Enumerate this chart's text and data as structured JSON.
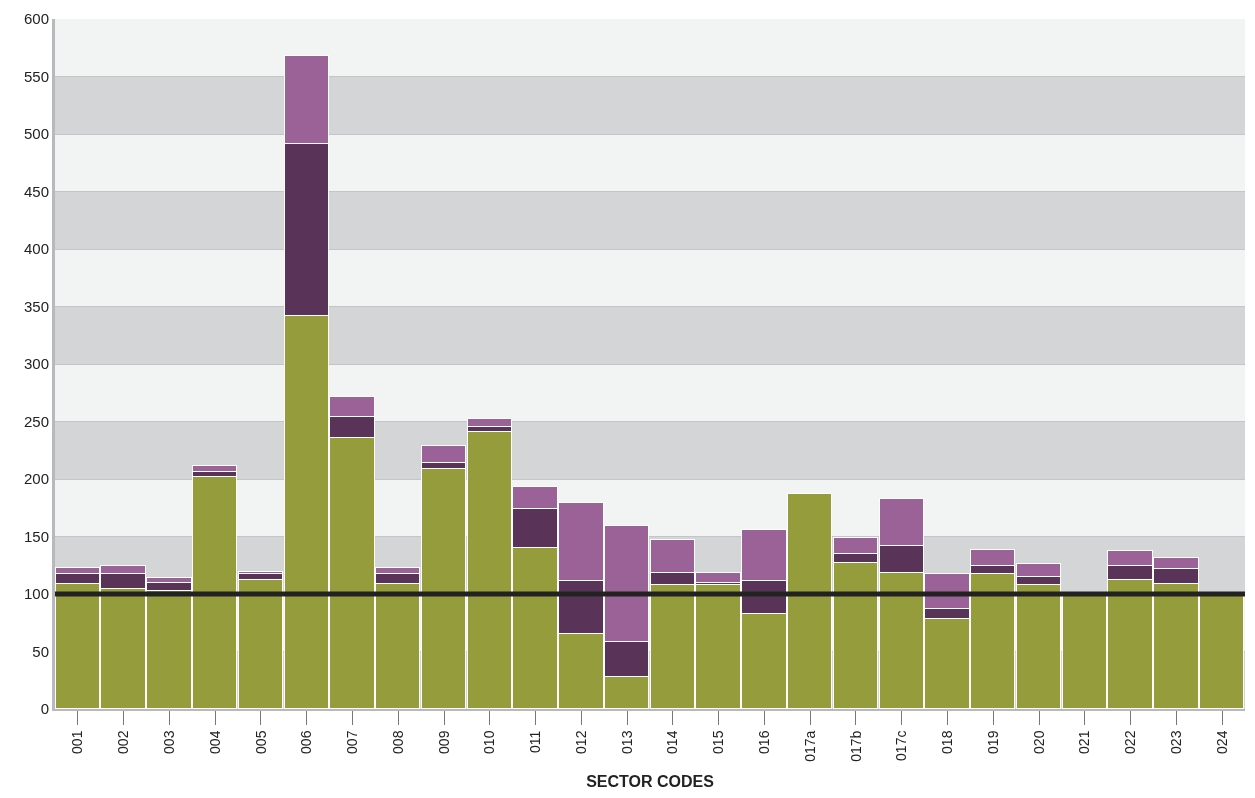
{
  "chart_data": {
    "type": "bar",
    "stacked": true,
    "xlabel": "SECTOR CODES",
    "categories": [
      "001",
      "002",
      "003",
      "004",
      "005",
      "006",
      "007",
      "008",
      "009",
      "010",
      "011",
      "012",
      "013",
      "014",
      "015",
      "016",
      "017a",
      "017b",
      "017c",
      "018",
      "019",
      "020",
      "021",
      "022",
      "023",
      "024"
    ],
    "series": [
      {
        "color": "#959c3c",
        "values": [
          109,
          104,
          103,
          202,
          112,
          342,
          236,
          109,
          209,
          241,
          140,
          65,
          28,
          108,
          108,
          83,
          187,
          127,
          118,
          78,
          117,
          108,
          100,
          112,
          109,
          100
        ]
      },
      {
        "color": "#5a3358",
        "values": [
          8,
          13,
          7,
          4,
          5,
          149,
          18,
          8,
          5,
          4,
          34,
          46,
          30,
          10,
          2,
          28,
          null,
          8,
          24,
          9,
          7,
          7,
          null,
          12,
          13,
          null
        ]
      },
      {
        "color": "#9a6296",
        "values": [
          6,
          7,
          4,
          5,
          2,
          77,
          17,
          6,
          15,
          7,
          19,
          68,
          101,
          29,
          8,
          45,
          null,
          14,
          41,
          30,
          14,
          11,
          null,
          13,
          9,
          null
        ]
      }
    ],
    "ylim": [
      0,
      600
    ],
    "yticks": [
      0,
      50,
      100,
      150,
      200,
      250,
      300,
      350,
      400,
      450,
      500,
      550,
      600
    ],
    "grid": "y",
    "ref_lines": [
      {
        "axis": "y",
        "value": 100,
        "color": "#222222"
      }
    ]
  }
}
